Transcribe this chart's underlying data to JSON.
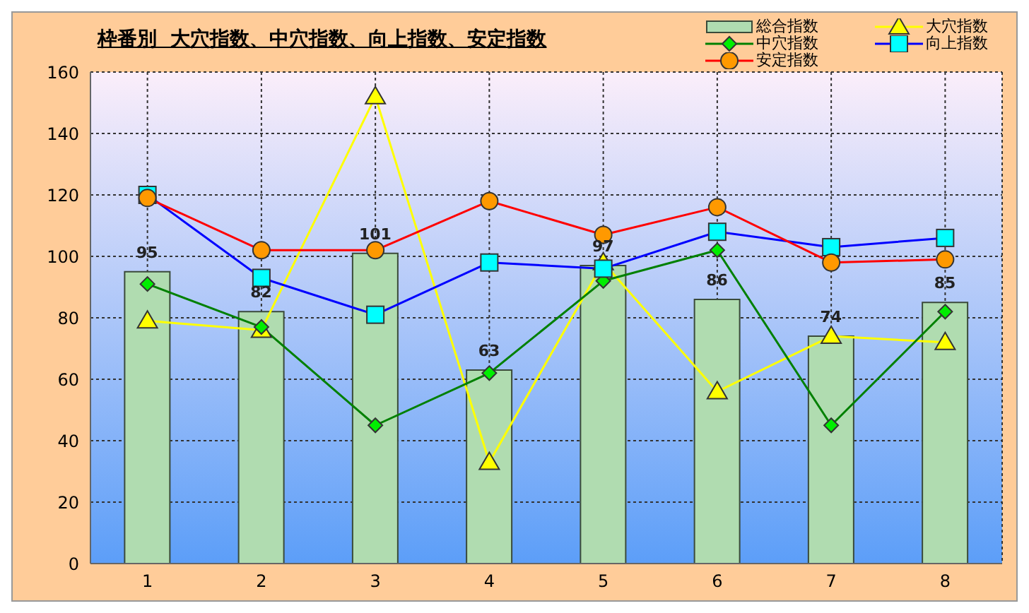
{
  "chart_data": {
    "type": "bar",
    "title": "枠番別  大穴指数、中穴指数、向上指数、安定指数",
    "categories": [
      "1",
      "2",
      "3",
      "4",
      "5",
      "6",
      "7",
      "8"
    ],
    "series": [
      {
        "name": "総合指数",
        "color": "#b0dcb0",
        "values": [
          95,
          82,
          101,
          63,
          97,
          86,
          74,
          85
        ],
        "value_labels": [
          "95",
          "82",
          "101",
          "63",
          "97",
          "86",
          "74",
          "85"
        ]
      },
      {
        "name": "大穴指数",
        "type": "line",
        "color": "#ffff00",
        "marker": "triangle",
        "values": [
          79,
          76,
          152,
          33,
          98,
          56,
          74,
          72
        ]
      },
      {
        "name": "中穴指数",
        "type": "line",
        "color": "#008000",
        "marker": "diamond",
        "values": [
          91,
          77,
          45,
          62,
          92,
          102,
          45,
          82
        ]
      },
      {
        "name": "向上指数",
        "type": "line",
        "color": "#0000ff",
        "marker": "square",
        "values": [
          120,
          93,
          81,
          98,
          96,
          108,
          103,
          106
        ]
      },
      {
        "name": "安定指数",
        "type": "line",
        "color": "#ff0000",
        "marker": "circle",
        "values": [
          119,
          102,
          102,
          118,
          107,
          116,
          98,
          99
        ]
      }
    ],
    "ylim": [
      0,
      160
    ],
    "yticks": [
      0,
      20,
      40,
      60,
      80,
      100,
      120,
      140,
      160
    ],
    "grid": true,
    "legend": "top right"
  }
}
